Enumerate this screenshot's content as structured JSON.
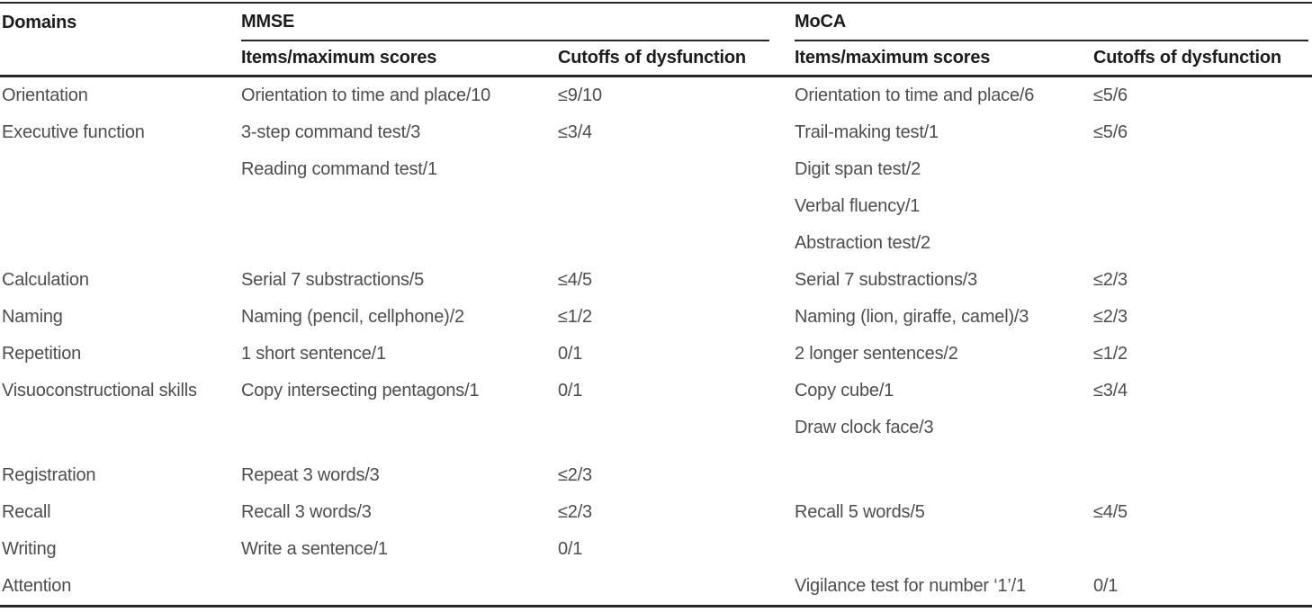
{
  "table": {
    "headers": {
      "domains": "Domains",
      "mmse": "MMSE",
      "moca": "MoCA",
      "mmse_items": "Items/maximum scores",
      "mmse_cutoffs": "Cutoffs of dysfunction",
      "moca_items": "Items/maximum scores",
      "moca_cutoffs": "Cutoffs of dysfunction"
    },
    "rows": [
      {
        "domain": "Orientation",
        "mmse_item": "Orientation to time and place/10",
        "mmse_cutoff": "≤9/10",
        "moca_item": "Orientation to time and place/6",
        "moca_cutoff": "≤5/6"
      },
      {
        "domain": "Executive function",
        "mmse_item": "3-step command test/3",
        "mmse_cutoff": "≤3/4",
        "moca_item": "Trail-making test/1",
        "moca_cutoff": "≤5/6"
      },
      {
        "domain": "",
        "mmse_item": "Reading command test/1",
        "mmse_cutoff": "",
        "moca_item": "Digit span test/2",
        "moca_cutoff": ""
      },
      {
        "domain": "",
        "mmse_item": "",
        "mmse_cutoff": "",
        "moca_item": "Verbal fluency/1",
        "moca_cutoff": ""
      },
      {
        "domain": "",
        "mmse_item": "",
        "mmse_cutoff": "",
        "moca_item": "Abstraction test/2",
        "moca_cutoff": ""
      },
      {
        "domain": "Calculation",
        "mmse_item": "Serial 7 substractions/5",
        "mmse_cutoff": "≤4/5",
        "moca_item": "Serial 7 substractions/3",
        "moca_cutoff": "≤2/3"
      },
      {
        "domain": "Naming",
        "mmse_item": "Naming (pencil, cellphone)/2",
        "mmse_cutoff": "≤1/2",
        "moca_item": "Naming (lion, giraffe, camel)/3",
        "moca_cutoff": "≤2/3"
      },
      {
        "domain": "Repetition",
        "mmse_item": "1 short sentence/1",
        "mmse_cutoff": "0/1",
        "moca_item": "2 longer sentences/2",
        "moca_cutoff": "≤1/2"
      },
      {
        "domain": "Visuoconstructional skills",
        "mmse_item": "Copy intersecting pentagons/1",
        "mmse_cutoff": "0/1",
        "moca_item": "Copy cube/1",
        "moca_cutoff": "≤3/4"
      },
      {
        "domain": "",
        "mmse_item": "",
        "mmse_cutoff": "",
        "moca_item": "Draw clock face/3",
        "moca_cutoff": ""
      },
      {
        "domain": "Registration",
        "mmse_item": "Repeat 3 words/3",
        "mmse_cutoff": "≤2/3",
        "moca_item": "",
        "moca_cutoff": "",
        "gap_before": true
      },
      {
        "domain": "Recall",
        "mmse_item": "Recall 3 words/3",
        "mmse_cutoff": "≤2/3",
        "moca_item": "Recall 5 words/5",
        "moca_cutoff": "≤4/5"
      },
      {
        "domain": "Writing",
        "mmse_item": "Write a sentence/1",
        "mmse_cutoff": "0/1",
        "moca_item": "",
        "moca_cutoff": ""
      },
      {
        "domain": "Attention",
        "mmse_item": "",
        "mmse_cutoff": "",
        "moca_item": "Vigilance test for number ‘1’/1",
        "moca_cutoff": "0/1"
      }
    ],
    "colors": {
      "rule": "#262626",
      "header_text": "#1c1c1c",
      "body_text": "#4d4d4d",
      "background": "#ffffff"
    }
  }
}
